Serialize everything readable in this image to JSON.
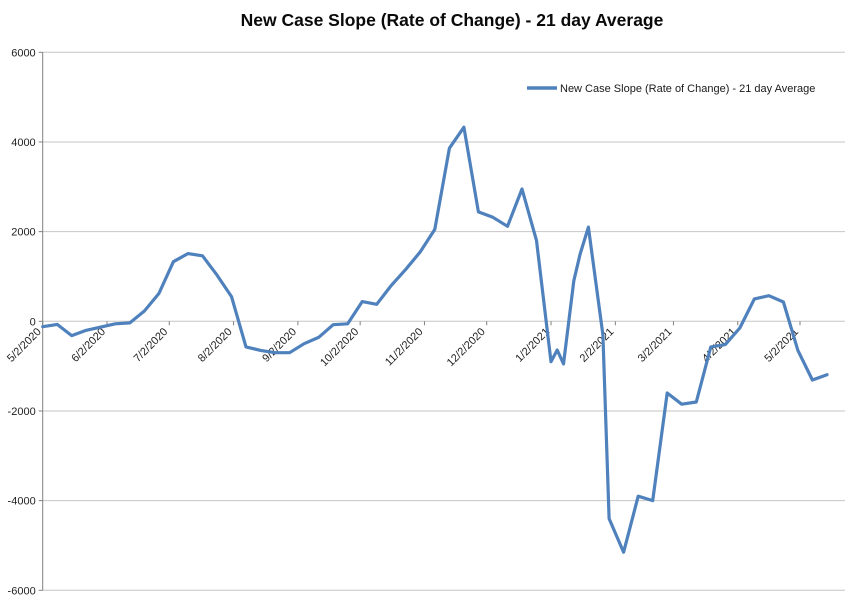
{
  "title": "New Case Slope (Rate of Change) - 21 day Average",
  "legend": {
    "label": "New Case Slope (Rate of Change) - 21 day Average",
    "line_color": "#4F81BD"
  },
  "colors": {
    "series_line": "#4F81BD",
    "gridline": "#C6C6C6",
    "axis_line": "#808080",
    "background": "#FFFFFF"
  },
  "chart_data": {
    "type": "line",
    "title": "New Case Slope (Rate of Change) - 21 day Average",
    "xlabel": "",
    "ylabel": "",
    "ylim": [
      -6000,
      6000
    ],
    "y_ticks": [
      6000,
      4000,
      2000,
      0,
      -2000,
      -4000,
      -6000
    ],
    "x_ticks": [
      "5/2/2020",
      "6/2/2020",
      "7/2/2020",
      "8/2/2020",
      "9/2/2020",
      "10/2/2020",
      "11/2/2020",
      "12/2/2020",
      "1/2/2021",
      "2/2/2021",
      "3/2/2021",
      "4/2/2021",
      "5/2/2021"
    ],
    "grid": "horizontal",
    "legend_position": "top-right",
    "x_tick_rotation_deg": 45,
    "series": [
      {
        "name": "New Case Slope (Rate of Change) - 21 day Average",
        "color": "#4F81BD",
        "points": [
          [
            "5/2/2020",
            -120
          ],
          [
            "5/9/2020",
            -70
          ],
          [
            "5/16/2020",
            -320
          ],
          [
            "5/23/2020",
            -200
          ],
          [
            "5/30/2020",
            -130
          ],
          [
            "6/6/2020",
            -55
          ],
          [
            "6/13/2020",
            -35
          ],
          [
            "6/20/2020",
            230
          ],
          [
            "6/27/2020",
            620
          ],
          [
            "7/4/2020",
            1330
          ],
          [
            "7/11/2020",
            1510
          ],
          [
            "7/18/2020",
            1460
          ],
          [
            "7/25/2020",
            1030
          ],
          [
            "8/1/2020",
            550
          ],
          [
            "8/8/2020",
            -570
          ],
          [
            "8/15/2020",
            -650
          ],
          [
            "8/22/2020",
            -700
          ],
          [
            "8/29/2020",
            -700
          ],
          [
            "9/5/2020",
            -500
          ],
          [
            "9/12/2020",
            -360
          ],
          [
            "9/19/2020",
            -75
          ],
          [
            "9/26/2020",
            -55
          ],
          [
            "10/3/2020",
            440
          ],
          [
            "10/10/2020",
            380
          ],
          [
            "10/17/2020",
            800
          ],
          [
            "10/24/2020",
            1160
          ],
          [
            "10/31/2020",
            1550
          ],
          [
            "11/7/2020",
            2050
          ],
          [
            "11/14/2020",
            3860
          ],
          [
            "11/21/2020",
            4330
          ],
          [
            "11/28/2020",
            2440
          ],
          [
            "12/5/2020",
            2320
          ],
          [
            "12/12/2020",
            2120
          ],
          [
            "12/19/2020",
            2950
          ],
          [
            "12/26/2020",
            1800
          ],
          [
            "1/2/2021",
            -900
          ],
          [
            "1/5/2021",
            -640
          ],
          [
            "1/8/2021",
            -950
          ],
          [
            "1/13/2021",
            900
          ],
          [
            "1/16/2021",
            1500
          ],
          [
            "1/20/2021",
            2100
          ],
          [
            "1/27/2021",
            -300
          ],
          [
            "1/30/2021",
            -4400
          ],
          [
            "2/6/2021",
            -5150
          ],
          [
            "2/13/2021",
            -3900
          ],
          [
            "2/20/2021",
            -4000
          ],
          [
            "2/27/2021",
            -1600
          ],
          [
            "3/6/2021",
            -1850
          ],
          [
            "3/13/2021",
            -1800
          ],
          [
            "3/20/2021",
            -570
          ],
          [
            "3/27/2021",
            -520
          ],
          [
            "4/3/2021",
            -150
          ],
          [
            "4/10/2021",
            500
          ],
          [
            "4/17/2021",
            570
          ],
          [
            "4/24/2021",
            430
          ],
          [
            "5/1/2021",
            -650
          ],
          [
            "5/8/2021",
            -1310
          ],
          [
            "5/15/2021",
            -1190
          ]
        ]
      }
    ]
  }
}
